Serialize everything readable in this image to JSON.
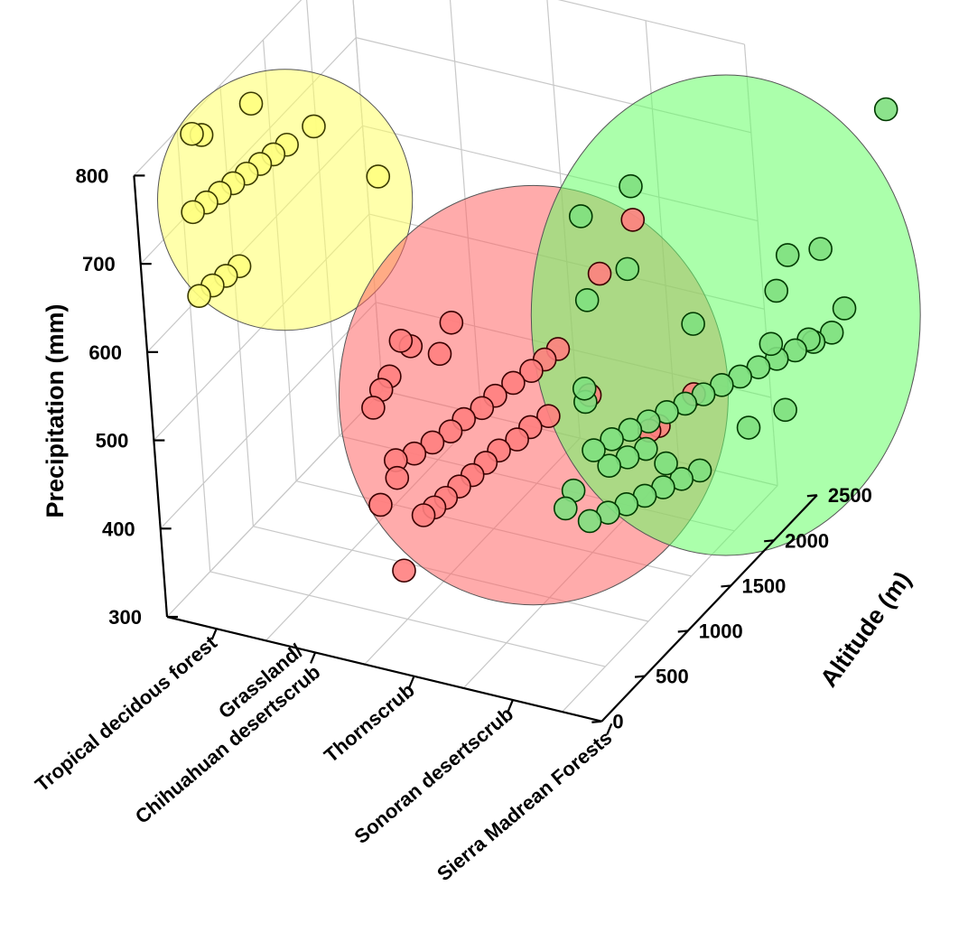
{
  "chart_data": {
    "type": "scatter",
    "projection": "3d",
    "title": "",
    "xlabel": "",
    "ylabel": "Altitude (m)",
    "zlabel": "Precipitation (mm)",
    "x_categories": [
      "Tropical decidous forest",
      "Grassland/ Chihuahuan desertscrub",
      "Thornscrub",
      "Sonoran desertscrub",
      "Sierra Madrean Forests"
    ],
    "x_category_lines": [
      [
        "Tropical decidous forest"
      ],
      [
        "Grassland/",
        "Chihuahuan desertscrub"
      ],
      [
        "Thornscrub"
      ],
      [
        "Sonoran desertscrub"
      ],
      [
        "Sierra Madrean Forests"
      ]
    ],
    "y_ticks": [
      "0",
      "500",
      "1000",
      "1500",
      "2000",
      "2500"
    ],
    "z_ticks": [
      "300",
      "400",
      "500",
      "600",
      "700",
      "800"
    ],
    "ylim": [
      0,
      2500
    ],
    "zlim": [
      300,
      800
    ],
    "grid": true,
    "groups": [
      {
        "category": "Tropical decidous forest",
        "color": "#ffff80",
        "edge": "#3a3a00",
        "ellipse_color": "#ffff66",
        "points": [
          [
            0.15,
            500,
            800
          ],
          [
            0.4,
            900,
            800
          ],
          [
            0.2,
            550,
            795
          ],
          [
            0.1,
            500,
            710
          ],
          [
            0.15,
            600,
            712
          ],
          [
            0.2,
            700,
            714
          ],
          [
            0.25,
            800,
            716
          ],
          [
            0.3,
            900,
            718
          ],
          [
            0.35,
            1000,
            720
          ],
          [
            0.4,
            1100,
            722
          ],
          [
            0.45,
            1200,
            724
          ],
          [
            0.55,
            1400,
            727
          ],
          [
            0.1,
            500,
            615
          ],
          [
            0.15,
            600,
            618
          ],
          [
            0.2,
            700,
            620
          ],
          [
            0.25,
            800,
            622
          ],
          [
            0.6,
            2000,
            610
          ]
        ]
      },
      {
        "category": "Thornscrub",
        "color": "#ff8080",
        "edge": "#3a0000",
        "ellipse_color": "#ff6666",
        "points": [
          [
            0.0,
            650,
            600
          ],
          [
            0.05,
            700,
            590
          ],
          [
            0.2,
            850,
            570
          ],
          [
            0.0,
            500,
            575
          ],
          [
            0.0,
            400,
            570
          ],
          [
            0.0,
            300,
            560
          ],
          [
            0.2,
            1000,
            590
          ],
          [
            1.0,
            2200,
            605
          ],
          [
            1.0,
            1800,
            585
          ],
          [
            0.0,
            500,
            480
          ],
          [
            0.1,
            600,
            480
          ],
          [
            0.2,
            700,
            485
          ],
          [
            0.3,
            800,
            490
          ],
          [
            0.35,
            900,
            495
          ],
          [
            0.45,
            1000,
            500
          ],
          [
            0.5,
            1100,
            505
          ],
          [
            0.6,
            1200,
            512
          ],
          [
            0.7,
            1300,
            518
          ],
          [
            0.75,
            1400,
            522
          ],
          [
            0.8,
            1500,
            525
          ],
          [
            0.0,
            500,
            460
          ],
          [
            0.0,
            300,
            450
          ],
          [
            0.1,
            650,
            405
          ],
          [
            0.15,
            720,
            408
          ],
          [
            0.2,
            800,
            412
          ],
          [
            0.25,
            900,
            416
          ],
          [
            0.3,
            1000,
            420
          ],
          [
            0.35,
            1100,
            425
          ],
          [
            0.4,
            1200,
            430
          ],
          [
            0.5,
            1300,
            435
          ],
          [
            0.55,
            1400,
            440
          ],
          [
            0.65,
            1500,
            445
          ],
          [
            0.9,
            1700,
            455
          ],
          [
            0.0,
            500,
            355
          ],
          [
            1.3,
            2000,
            400
          ],
          [
            1.2,
            2000,
            392
          ],
          [
            1.4,
            2300,
            408
          ]
        ]
      },
      {
        "category": "Sierra Madrean Forests",
        "color": "#80e080",
        "edge": "#003a00",
        "ellipse_color": "#66ff66",
        "points": [
          [
            0.0,
            600,
            800
          ],
          [
            0.25,
            900,
            810
          ],
          [
            1.6,
            2300,
            790
          ],
          [
            0.2,
            850,
            720
          ],
          [
            0.0,
            600,
            705
          ],
          [
            1.0,
            1750,
            665
          ],
          [
            1.2,
            1900,
            662
          ],
          [
            1.0,
            1600,
            640
          ],
          [
            0.5,
            1200,
            630
          ],
          [
            0.0,
            500,
            600
          ],
          [
            0.0,
            500,
            615
          ],
          [
            1.0,
            1500,
            590
          ],
          [
            1.4,
            1900,
            600
          ],
          [
            1.2,
            1700,
            580
          ],
          [
            0.0,
            550,
            540
          ],
          [
            0.1,
            650,
            545
          ],
          [
            0.2,
            750,
            548
          ],
          [
            0.3,
            850,
            550
          ],
          [
            0.4,
            950,
            553
          ],
          [
            0.5,
            1050,
            555
          ],
          [
            0.6,
            1150,
            558
          ],
          [
            0.7,
            1250,
            561
          ],
          [
            0.8,
            1350,
            563
          ],
          [
            0.9,
            1450,
            566
          ],
          [
            1.0,
            1550,
            568
          ],
          [
            1.1,
            1650,
            570
          ],
          [
            1.2,
            1750,
            572
          ],
          [
            1.3,
            1850,
            575
          ],
          [
            0.0,
            300,
            520
          ],
          [
            0.0,
            200,
            510
          ],
          [
            0.4,
            900,
            500
          ],
          [
            0.1,
            600,
            520
          ],
          [
            0.2,
            700,
            522
          ],
          [
            0.3,
            800,
            524
          ],
          [
            0.0,
            450,
            470
          ],
          [
            0.1,
            550,
            472
          ],
          [
            0.2,
            650,
            474
          ],
          [
            0.3,
            750,
            476
          ],
          [
            0.4,
            850,
            478
          ],
          [
            0.5,
            950,
            480
          ],
          [
            0.6,
            1050,
            482
          ],
          [
            0.8,
            1400,
            500
          ],
          [
            1.0,
            1600,
            505
          ]
        ]
      }
    ]
  }
}
